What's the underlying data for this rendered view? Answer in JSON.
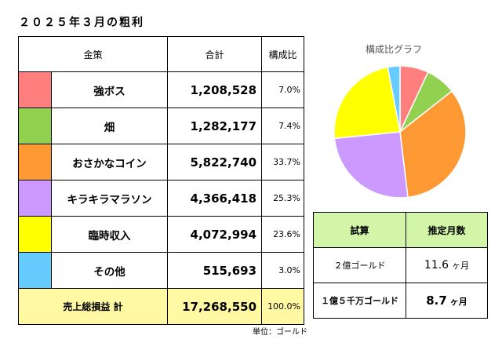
{
  "title": "２０２５年３月の粗利",
  "table": {
    "headers": [
      "金策",
      "合計",
      "構成比"
    ],
    "rows": [
      {
        "name": "強ボス",
        "amount": "1,208,528",
        "ratio": "7.0%",
        "color": "#ff7f7f"
      },
      {
        "name": "畑",
        "amount": "1,282,177",
        "ratio": "7.4%",
        "color": "#92d050"
      },
      {
        "name": "おさかなコイン",
        "amount": "5,822,740",
        "ratio": "33.7%",
        "color": "#ff9933"
      },
      {
        "name": "キラキラマラソン",
        "amount": "4,366,418",
        "ratio": "25.3%",
        "color": "#cc99ff"
      },
      {
        "name": "臨時収入",
        "amount": "4,072,994",
        "ratio": "23.6%",
        "color": "#ffff00"
      },
      {
        "name": "その他",
        "amount": "515,693",
        "ratio": "3.0%",
        "color": "#66ccff"
      }
    ],
    "total": {
      "label": "売上総損益 計",
      "amount": "17,268,550",
      "ratio": "100.0%"
    }
  },
  "unit_note": "単位：ゴールド",
  "estimate": {
    "headers": [
      "試算",
      "推定月数"
    ],
    "rows": [
      {
        "label": "２億ゴールド",
        "value": "11.6",
        "unit": "ヶ月"
      },
      {
        "label": "１億５千万ゴールド",
        "value": "8.7",
        "unit": "ヶ月"
      }
    ]
  },
  "chart_data": {
    "type": "pie",
    "title": "構成比グラフ",
    "categories": [
      "強ボス",
      "畑",
      "おさかなコイン",
      "キラキラマラソン",
      "臨時収入",
      "その他"
    ],
    "values": [
      7.0,
      7.4,
      33.7,
      25.3,
      23.6,
      3.0
    ],
    "colors": [
      "#ff7f7f",
      "#92d050",
      "#ff9933",
      "#cc99ff",
      "#ffff00",
      "#66ccff"
    ]
  }
}
